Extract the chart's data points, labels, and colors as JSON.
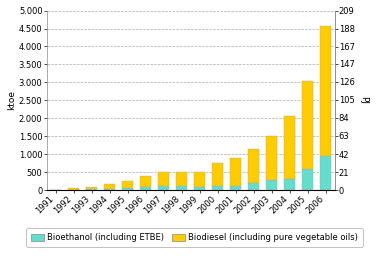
{
  "years": [
    1991,
    1992,
    1993,
    1994,
    1995,
    1996,
    1997,
    1998,
    1999,
    2000,
    2001,
    2002,
    2003,
    2004,
    2005,
    2006
  ],
  "bioethanol": [
    0,
    5,
    25,
    35,
    55,
    75,
    105,
    100,
    85,
    120,
    125,
    200,
    290,
    310,
    590,
    960
  ],
  "biodiesel": [
    2,
    40,
    55,
    130,
    195,
    310,
    385,
    390,
    415,
    640,
    775,
    940,
    1210,
    1740,
    2450,
    3620
  ],
  "bioethanol_color": "#66DDCC",
  "biodiesel_color": "#FFCC00",
  "bar_edge_color": "#AAAAAA",
  "ylabel_left": "ktoe",
  "ylabel_right": "PJ",
  "ylim_left": [
    0,
    5000
  ],
  "ylim_right": [
    0,
    209
  ],
  "yticks_left": [
    0,
    500,
    1000,
    1500,
    2000,
    2500,
    3000,
    3500,
    4000,
    4500,
    5000
  ],
  "yticks_right": [
    0,
    21,
    42,
    63,
    84,
    105,
    126,
    147,
    167,
    188,
    209
  ],
  "ytick_labels_left": [
    "0",
    "500",
    "1.000",
    "1.500",
    "2.000",
    "2.500",
    "3.000",
    "3.500",
    "4.000",
    "4.500",
    "5.000"
  ],
  "ytick_labels_right": [
    "0",
    "21",
    "42",
    "63",
    "84",
    "105",
    "126",
    "147",
    "167",
    "188",
    "209"
  ],
  "legend_bioethanol": "Bioethanol (including ETBE)",
  "legend_biodiesel": "Biodiesel (including pure vegetable oils)",
  "bg_color": "#FFFFFF",
  "grid_color": "#AAAAAA",
  "axis_fontsize": 6.5,
  "tick_fontsize": 6,
  "legend_fontsize": 6
}
